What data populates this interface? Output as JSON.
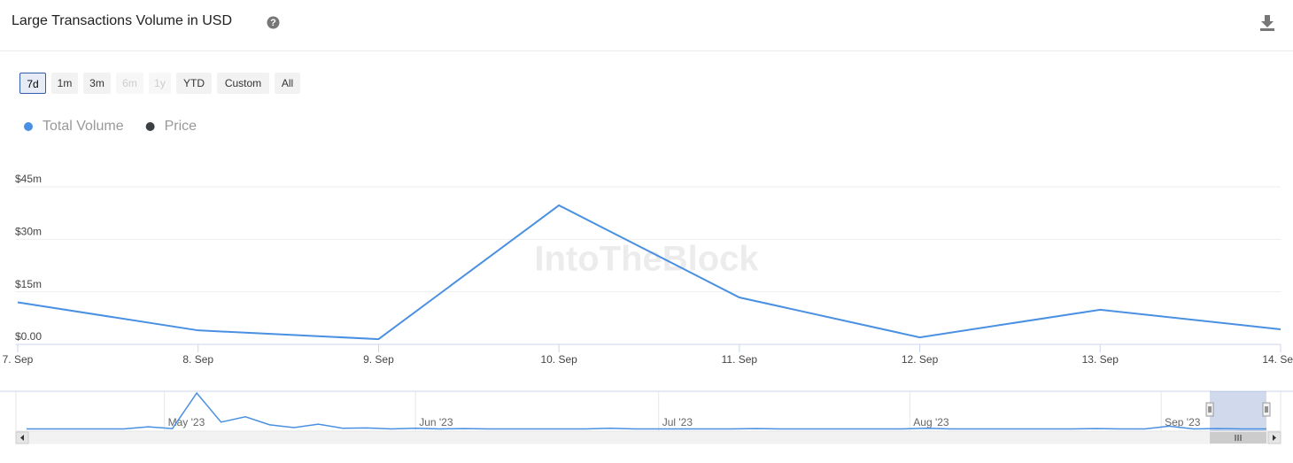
{
  "header": {
    "title": "Large Transactions Volume in USD"
  },
  "range_buttons": {
    "labels": [
      "7d",
      "1m",
      "3m",
      "6m",
      "1y",
      "YTD",
      "Custom",
      "All"
    ],
    "selected": 0,
    "disabled": [
      3,
      4
    ]
  },
  "chart_data": {
    "type": "line",
    "watermark": "IntoTheBlock",
    "categories": [
      "7. Sep",
      "8. Sep",
      "9. Sep",
      "10. Sep",
      "11. Sep",
      "12. Sep",
      "13. Sep",
      "14. Sep"
    ],
    "series": [
      {
        "name": "Total Volume",
        "color": "#4a90e2",
        "values": [
          12000000,
          4000000,
          1500000,
          39700000,
          13400000,
          2000000,
          9900000,
          4300000
        ]
      },
      {
        "name": "Price",
        "color": "#3c4043",
        "visible": false
      }
    ],
    "ylim": [
      0,
      45000000
    ],
    "yticks": [
      {
        "value": 0,
        "label": "$0.00"
      },
      {
        "value": 15000000,
        "label": "$15m"
      },
      {
        "value": 30000000,
        "label": "$30m"
      },
      {
        "value": 45000000,
        "label": "$45m"
      }
    ],
    "grid": true,
    "navigator": {
      "color": "#4a90e2",
      "values": [
        2000000,
        2000000,
        2000000,
        2000000,
        2000000,
        5000000,
        2500000,
        55000000,
        12000000,
        20000000,
        8000000,
        4000000,
        9000000,
        3000000,
        3500000,
        2000000,
        3000000,
        2000000,
        2500000,
        2000000,
        2000000,
        2000000,
        2000000,
        2000000,
        3000000,
        2000000,
        2000000,
        2000000,
        2000000,
        2000000,
        2500000,
        2000000,
        2000000,
        2000000,
        2000000,
        2000000,
        2000000,
        3000000,
        2000000,
        2000000,
        2000000,
        2000000,
        2000000,
        2000000,
        2500000,
        2000000,
        2000000,
        6000000,
        2000000,
        2500000,
        2000000,
        2000000
      ],
      "xlim": [
        0,
        51
      ],
      "xticks": [
        {
          "value": 5.67,
          "label": "May '23"
        },
        {
          "value": 16,
          "label": "Jun '23"
        },
        {
          "value": 26,
          "label": "Jul '23"
        },
        {
          "value": 36.33,
          "label": "Aug '23"
        },
        {
          "value": 46.67,
          "label": "Sep '23"
        }
      ],
      "selection": [
        48.67,
        51
      ]
    }
  }
}
